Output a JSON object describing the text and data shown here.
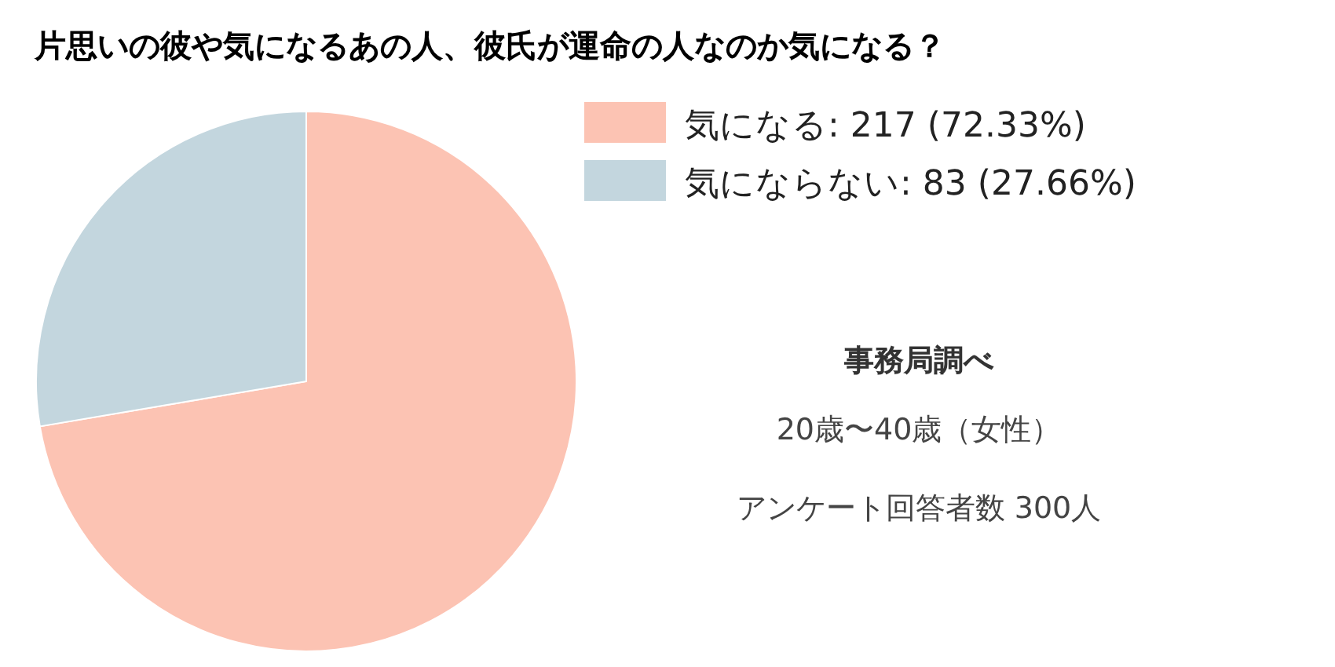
{
  "chart_data": {
    "type": "pie",
    "title": "片思いの彼や気になるあの人、彼氏が運命の人なのか気になる？",
    "categories": [
      "気になる: 217 (72.33%)",
      "気にならない: 83 (27.66%)"
    ],
    "values": [
      217,
      83
    ],
    "colors": [
      "#fcc3b3",
      "#c3d6de"
    ],
    "legend": "top right",
    "annotations": [
      "事務局調べ",
      "20歳〜40歳（女性）",
      "アンケート回答者数 300人"
    ]
  }
}
